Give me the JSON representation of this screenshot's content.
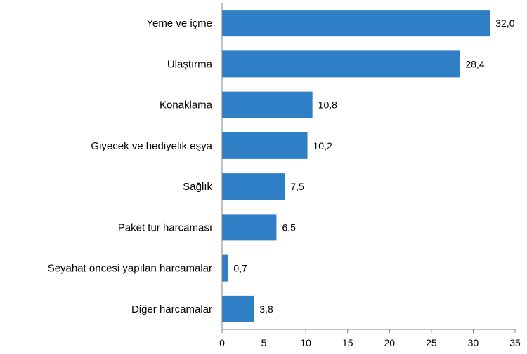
{
  "chart_data": {
    "type": "bar",
    "orientation": "horizontal",
    "categories": [
      "Yeme ve içme",
      "Ulaştırma",
      "Konaklama",
      "Giyecek ve hediyelik eşya",
      "Sağlık",
      "Paket tur harcaması",
      "Seyahat öncesi yapılan harcamalar",
      "Diğer harcamalar"
    ],
    "values": [
      32.0,
      28.4,
      10.8,
      10.2,
      7.5,
      6.5,
      0.7,
      3.8
    ],
    "value_labels": [
      "32,0",
      "28,4",
      "10,8",
      "10,2",
      "7,5",
      "6,5",
      "0,7",
      "3,8"
    ],
    "title": "",
    "xlabel": "",
    "ylabel": "",
    "xlim": [
      0,
      35
    ],
    "xticks": [
      0,
      5,
      10,
      15,
      20,
      25,
      30,
      35
    ],
    "grid": false,
    "legend": "none",
    "bar_color": "#2f7fc6"
  }
}
